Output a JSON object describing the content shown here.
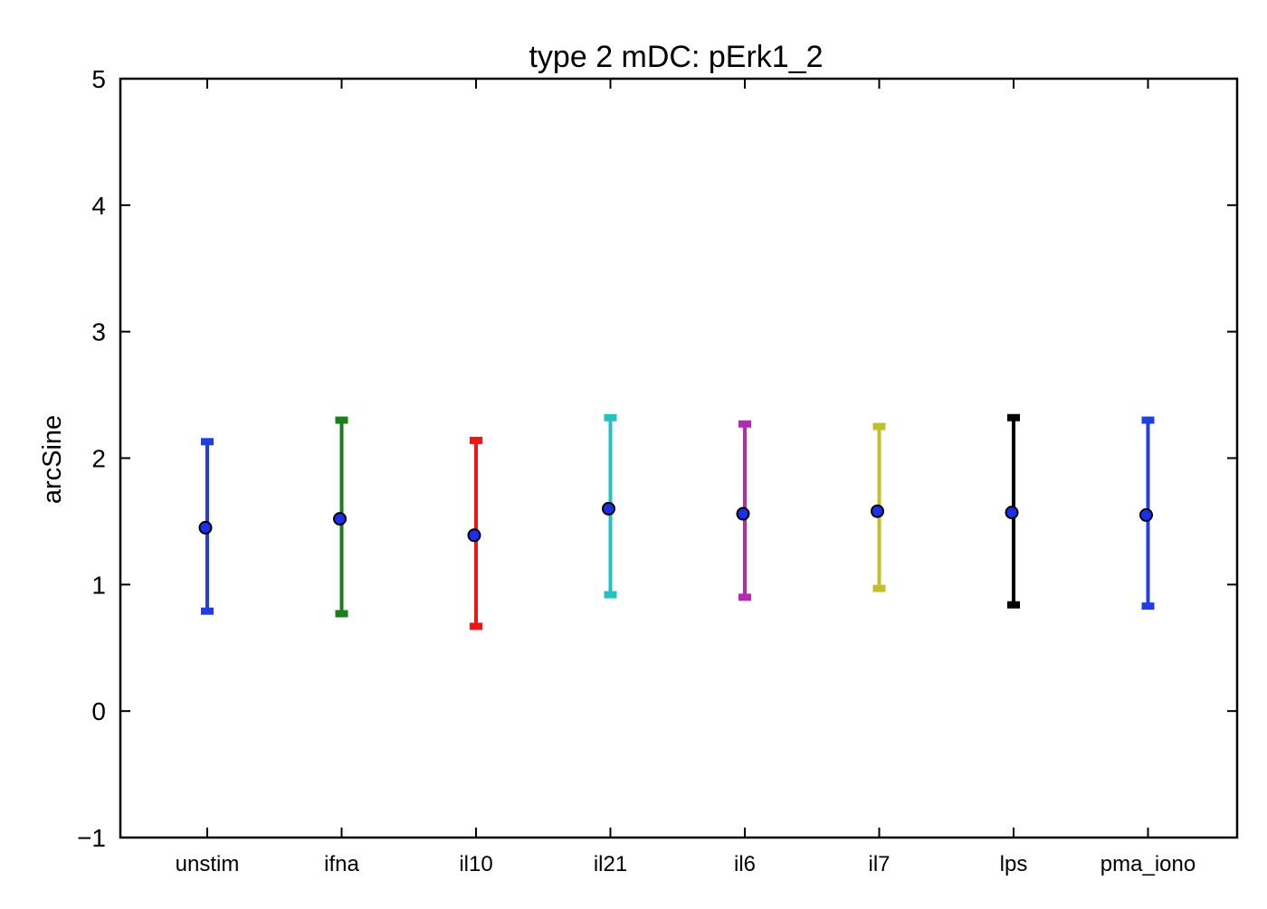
{
  "chart_data": {
    "type": "scatter",
    "title": "type 2 mDC: pErk1_2",
    "xlabel": "",
    "ylabel": "arcSine",
    "ylim": [
      -1,
      5
    ],
    "yticks": [
      -1,
      0,
      1,
      2,
      3,
      4,
      5
    ],
    "ytick_labels": [
      "−1",
      "0",
      "1",
      "2",
      "3",
      "4",
      "5"
    ],
    "grid": false,
    "categories": [
      "unstim",
      "ifna",
      "il10",
      "il21",
      "il6",
      "il7",
      "lps",
      "pma_iono"
    ],
    "values": [
      1.45,
      1.52,
      1.39,
      1.6,
      1.56,
      1.58,
      1.57,
      1.55
    ],
    "lower": [
      0.79,
      0.77,
      0.67,
      0.92,
      0.9,
      0.97,
      0.84,
      0.83
    ],
    "upper": [
      2.13,
      2.3,
      2.14,
      2.32,
      2.27,
      2.25,
      2.32,
      2.3
    ],
    "errorbar_colors": [
      "#1f3fe0",
      "#1a7f1a",
      "#f01616",
      "#26c0c0",
      "#b52ab5",
      "#c0c02e",
      "#000000",
      "#1f3fe0"
    ],
    "marker_color": "#1c2fe8"
  }
}
